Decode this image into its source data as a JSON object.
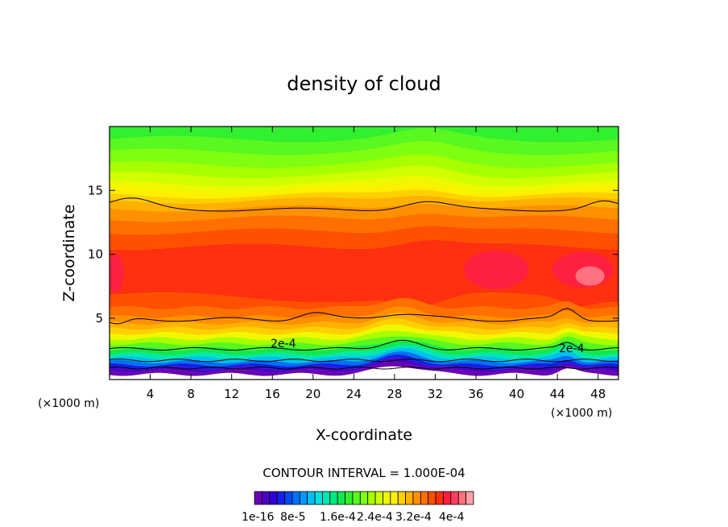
{
  "chart_data": {
    "type": "heatmap",
    "title": "density of cloud",
    "xlabel": "X-coordinate",
    "ylabel": "Z-coordinate",
    "x_unit": "(×1000 m)",
    "z_unit": "(×1000 m)",
    "xlim": [
      0,
      50
    ],
    "ylim": [
      0.2,
      20
    ],
    "x_ticks": [
      4,
      8,
      12,
      16,
      20,
      24,
      28,
      32,
      36,
      40,
      44,
      48
    ],
    "y_ticks": [
      5,
      10,
      15
    ],
    "contour_interval_text": "CONTOUR INTERVAL = 1.000E-04",
    "contour_label": "2e-4",
    "colorbar_labels": [
      "1e-16",
      "8e-5",
      "1.6e-4",
      "2.4e-4",
      "3.2e-4",
      "4e-4"
    ],
    "colormap": [
      "#6a00b5",
      "#4c00c8",
      "#2e00d8",
      "#1420e8",
      "#0048f0",
      "#0070f8",
      "#0098f8",
      "#00c0f0",
      "#00e0e0",
      "#00e8b0",
      "#00e880",
      "#10e850",
      "#30f030",
      "#58f820",
      "#80ff10",
      "#a8ff00",
      "#d0ff00",
      "#f0f800",
      "#fff000",
      "#ffd000",
      "#ffb000",
      "#ff9000",
      "#ff7000",
      "#ff5000",
      "#ff3010",
      "#ff2040",
      "#ff4060",
      "#ff7080",
      "#ffa0a8"
    ]
  }
}
